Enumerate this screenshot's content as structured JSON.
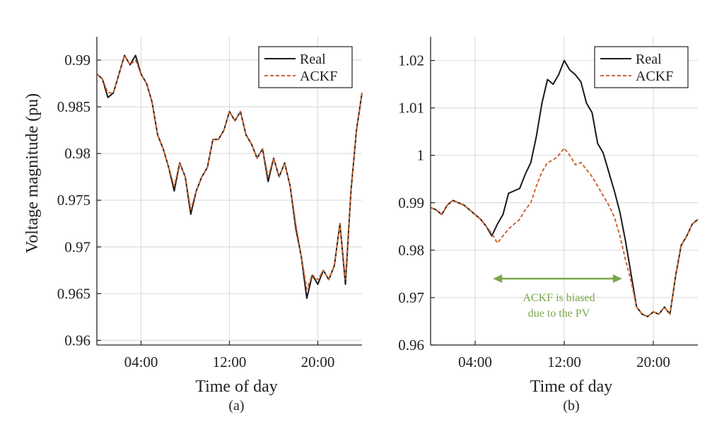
{
  "figure": {
    "shared_ylabel": "Voltage magnitude (pu)"
  },
  "colors": {
    "real": "#1a1a1a",
    "ackf": "#cc6633",
    "grid": "#dddddd",
    "annotation": "#7aa84a"
  },
  "chart_data": [
    {
      "type": "line",
      "panel_label": "(a)",
      "xlabel": "Time of day",
      "ylabel": "Voltage magnitude (pu)",
      "xlim": [
        0,
        24
      ],
      "ylim": [
        0.9595,
        0.9925
      ],
      "xticks": [
        {
          "value": 4,
          "label": "04:00"
        },
        {
          "value": 12,
          "label": "12:00"
        },
        {
          "value": 20,
          "label": "20:00"
        }
      ],
      "yticks": [
        {
          "value": 0.96,
          "label": "0.96"
        },
        {
          "value": 0.965,
          "label": "0.965"
        },
        {
          "value": 0.97,
          "label": "0.97"
        },
        {
          "value": 0.975,
          "label": "0.975"
        },
        {
          "value": 0.98,
          "label": "0.98"
        },
        {
          "value": 0.985,
          "label": "0.985"
        },
        {
          "value": 0.99,
          "label": "0.99"
        }
      ],
      "grid": true,
      "legend": "top-right",
      "series": [
        {
          "name": "Real",
          "style": "solid",
          "x": [
            0,
            0.5,
            1,
            1.5,
            2,
            2.5,
            3,
            3.5,
            4,
            4.5,
            5,
            5.5,
            6,
            6.5,
            7,
            7.5,
            8,
            8.5,
            9,
            9.5,
            10,
            10.5,
            11,
            11.5,
            12,
            12.5,
            13,
            13.5,
            14,
            14.5,
            15,
            15.5,
            16,
            16.5,
            17,
            17.5,
            18,
            18.5,
            19,
            19.5,
            20,
            20.5,
            21,
            21.5,
            22,
            22.5,
            23,
            23.5,
            24
          ],
          "values": [
            0.9885,
            0.988,
            0.986,
            0.9865,
            0.9885,
            0.9905,
            0.9895,
            0.9905,
            0.9885,
            0.9875,
            0.9855,
            0.982,
            0.9805,
            0.9785,
            0.976,
            0.979,
            0.9775,
            0.9735,
            0.976,
            0.9775,
            0.9785,
            0.9815,
            0.9815,
            0.9825,
            0.9845,
            0.9835,
            0.9845,
            0.982,
            0.981,
            0.9795,
            0.9805,
            0.977,
            0.9795,
            0.9775,
            0.979,
            0.9765,
            0.972,
            0.969,
            0.9645,
            0.967,
            0.966,
            0.9675,
            0.9665,
            0.968,
            0.9725,
            0.966,
            0.976,
            0.9825,
            0.9865
          ]
        },
        {
          "name": "ACKF",
          "style": "dashed",
          "x": [
            0,
            0.5,
            1,
            1.5,
            2,
            2.5,
            3,
            3.5,
            4,
            4.5,
            5,
            5.5,
            6,
            6.5,
            7,
            7.5,
            8,
            8.5,
            9,
            9.5,
            10,
            10.5,
            11,
            11.5,
            12,
            12.5,
            13,
            13.5,
            14,
            14.5,
            15,
            15.5,
            16,
            16.5,
            17,
            17.5,
            18,
            18.5,
            19,
            19.5,
            20,
            20.5,
            21,
            21.5,
            22,
            22.5,
            23,
            23.5,
            24
          ],
          "values": [
            0.9885,
            0.988,
            0.9865,
            0.9865,
            0.9885,
            0.9905,
            0.9895,
            0.99,
            0.9885,
            0.9875,
            0.9855,
            0.982,
            0.9805,
            0.9785,
            0.9765,
            0.979,
            0.9775,
            0.974,
            0.976,
            0.9775,
            0.9785,
            0.9815,
            0.9815,
            0.9825,
            0.9845,
            0.9835,
            0.9845,
            0.982,
            0.981,
            0.9795,
            0.9805,
            0.9775,
            0.9795,
            0.9775,
            0.979,
            0.9765,
            0.9725,
            0.969,
            0.9655,
            0.967,
            0.9665,
            0.9675,
            0.9665,
            0.968,
            0.9725,
            0.9665,
            0.976,
            0.9825,
            0.9865
          ]
        }
      ]
    },
    {
      "type": "line",
      "panel_label": "(b)",
      "xlabel": "Time of day",
      "ylabel": "",
      "xlim": [
        0,
        24
      ],
      "ylim": [
        0.96,
        1.025
      ],
      "xticks": [
        {
          "value": 4,
          "label": "04:00"
        },
        {
          "value": 12,
          "label": "12:00"
        },
        {
          "value": 20,
          "label": "20:00"
        }
      ],
      "yticks": [
        {
          "value": 0.96,
          "label": "0.96"
        },
        {
          "value": 0.97,
          "label": "0.97"
        },
        {
          "value": 0.98,
          "label": "0.98"
        },
        {
          "value": 0.99,
          "label": "0.99"
        },
        {
          "value": 1.0,
          "label": "1"
        },
        {
          "value": 1.01,
          "label": "1.01"
        },
        {
          "value": 1.02,
          "label": "1.02"
        }
      ],
      "grid": true,
      "legend": "top-right",
      "annotation": {
        "text_lines": [
          "ACKF is biased",
          "due to the PV"
        ],
        "arrow_from_x": 5.6,
        "arrow_to_x": 17.2,
        "arrow_y": 0.974
      },
      "series": [
        {
          "name": "Real",
          "style": "solid",
          "x": [
            0,
            0.5,
            1,
            1.5,
            2,
            2.5,
            3,
            3.5,
            4,
            4.5,
            5,
            5.5,
            6,
            6.5,
            7,
            7.5,
            8,
            8.5,
            9,
            9.5,
            10,
            10.5,
            11,
            11.5,
            12,
            12.5,
            13,
            13.5,
            14,
            14.5,
            15,
            15.5,
            16,
            16.5,
            17,
            17.5,
            18,
            18.5,
            19,
            19.5,
            20,
            20.5,
            21,
            21.5,
            22,
            22.5,
            23,
            23.5,
            24
          ],
          "values": [
            0.989,
            0.9885,
            0.9875,
            0.9895,
            0.9905,
            0.99,
            0.9895,
            0.9885,
            0.9875,
            0.9865,
            0.985,
            0.983,
            0.9855,
            0.9875,
            0.992,
            0.9925,
            0.993,
            0.996,
            0.9985,
            1.004,
            1.011,
            1.016,
            1.015,
            1.017,
            1.02,
            1.018,
            1.017,
            1.0155,
            1.011,
            1.009,
            1.0025,
            1.0005,
            0.9965,
            0.9925,
            0.988,
            0.982,
            0.975,
            0.968,
            0.9665,
            0.966,
            0.967,
            0.9665,
            0.968,
            0.9665,
            0.9745,
            0.981,
            0.983,
            0.9855,
            0.9865
          ]
        },
        {
          "name": "ACKF",
          "style": "dashed",
          "x": [
            0,
            0.5,
            1,
            1.5,
            2,
            2.5,
            3,
            3.5,
            4,
            4.5,
            5,
            5.5,
            6,
            6.5,
            7,
            7.5,
            8,
            8.5,
            9,
            9.5,
            10,
            10.5,
            11,
            11.5,
            12,
            12.5,
            13,
            13.5,
            14,
            14.5,
            15,
            15.5,
            16,
            16.5,
            17,
            17.5,
            18,
            18.5,
            19,
            19.5,
            20,
            20.5,
            21,
            21.5,
            22,
            22.5,
            23,
            23.5,
            24
          ],
          "values": [
            0.989,
            0.9885,
            0.9875,
            0.9895,
            0.9905,
            0.99,
            0.9895,
            0.9885,
            0.9875,
            0.9865,
            0.985,
            0.9835,
            0.9815,
            0.983,
            0.9845,
            0.9855,
            0.9865,
            0.9885,
            0.99,
            0.9935,
            0.9965,
            0.9985,
            0.999,
            1.0,
            1.0015,
            1.0,
            0.998,
            0.9985,
            0.997,
            0.9955,
            0.9935,
            0.9915,
            0.9895,
            0.987,
            0.983,
            0.978,
            0.9735,
            0.968,
            0.9665,
            0.966,
            0.967,
            0.9665,
            0.968,
            0.9665,
            0.9745,
            0.981,
            0.983,
            0.9855,
            0.9865
          ]
        }
      ]
    }
  ]
}
